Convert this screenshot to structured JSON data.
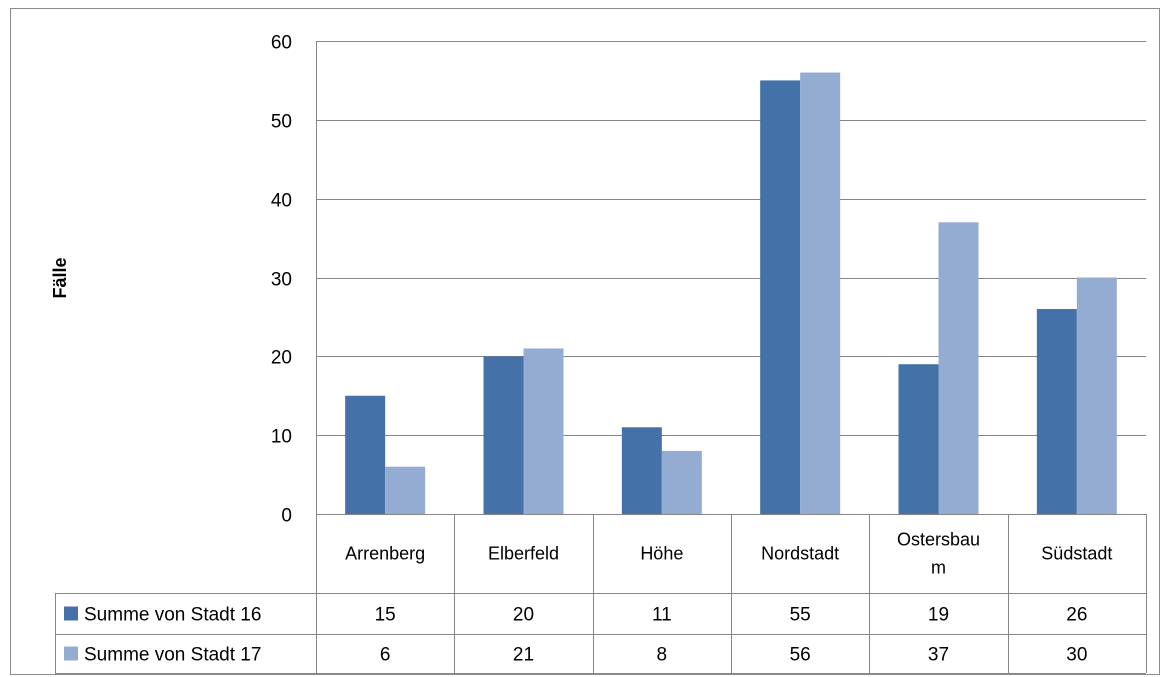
{
  "chart_data": {
    "type": "bar",
    "ylabel": "Fälle",
    "ylim": [
      0,
      60
    ],
    "yticks": [
      0,
      10,
      20,
      30,
      40,
      50,
      60
    ],
    "grid": true,
    "legend": "data-table",
    "categories": [
      "Arrenberg",
      "Elberfeld",
      "Höhe",
      "Nordstadt",
      "Ostersbaum",
      "Südstadt"
    ],
    "category_lines": [
      [
        "Arrenberg"
      ],
      [
        "Elberfeld"
      ],
      [
        "Höhe"
      ],
      [
        "Nordstadt"
      ],
      [
        "Ostersbau",
        "m"
      ],
      [
        "Südstadt"
      ]
    ],
    "series": [
      {
        "name": "Summe von Stadt 16",
        "color": "#4472A8",
        "values": [
          15,
          20,
          11,
          55,
          19,
          26
        ]
      },
      {
        "name": "Summe von Stadt 17",
        "color": "#95ACD2",
        "values": [
          6,
          21,
          8,
          56,
          37,
          30
        ]
      }
    ]
  }
}
